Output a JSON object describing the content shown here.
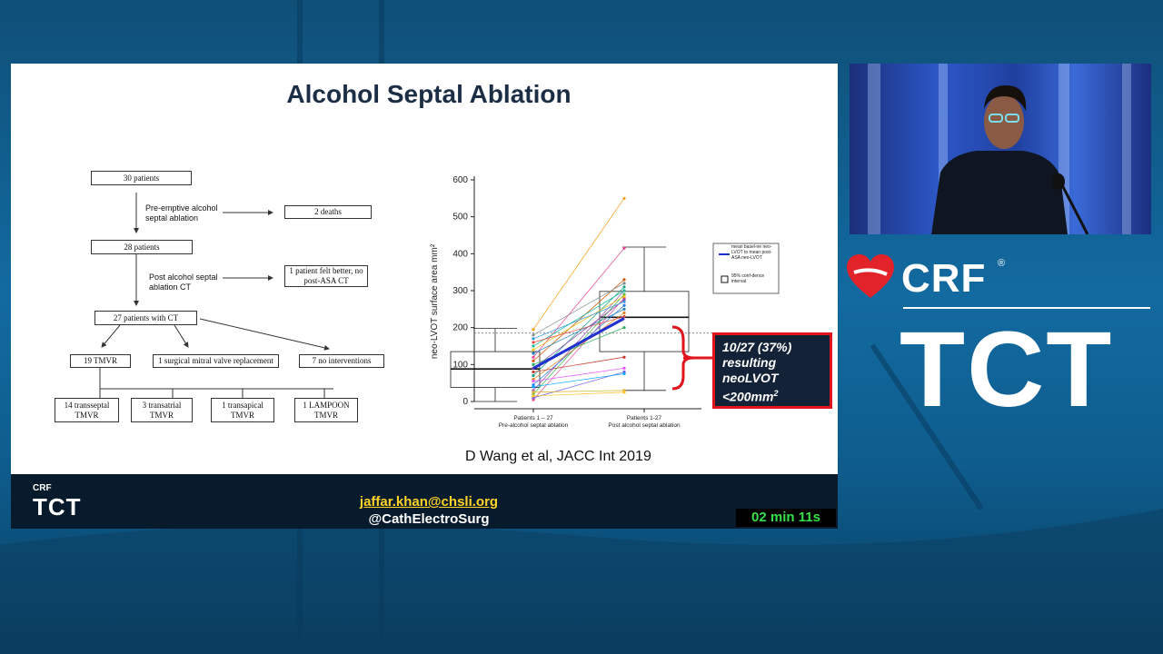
{
  "slide": {
    "title": "Alcohol Septal Ablation",
    "citation": "D Wang et al, JACC Int 2019",
    "flowchart": {
      "boxes": {
        "b30": "30 patients",
        "deaths": "2 deaths",
        "b28": "28 patients",
        "felt_better": "1 patient felt better, no post-ASA CT",
        "b27": "27 patients with CT",
        "tmvr19": "19 TMVR",
        "smvr": "1 surgical mitral valve replacement",
        "noint": "7 no interventions",
        "transseptal": "14 transseptal TMVR",
        "transatrial": "3 transatrial TMVR",
        "transapical": "1 transapical TMVR",
        "lampoon": "1 LAMPOON TMVR"
      },
      "labels": {
        "preemptive": "Pre-emptive alcohol septal ablation",
        "post_ct": "Post alcohol septal ablation CT"
      }
    },
    "chart_data": {
      "type": "line",
      "ylabel": "neo-LVOT surface area mm²",
      "ylim": [
        0,
        600
      ],
      "yticks": [
        "0",
        "100",
        "200",
        "300",
        "400",
        "500",
        "600"
      ],
      "categories": [
        "Patients 1 – 27 Pre-alcohol septal ablation",
        "Patients 1-27 Post alcohol septal ablation"
      ],
      "cat_line1": [
        "Patients 1 – 27",
        "Patients 1-27"
      ],
      "cat_line2": [
        "Pre-alcohol septal ablation",
        "Post alcohol septal ablation"
      ],
      "series": [
        {
          "values": [
            5,
            280
          ],
          "color": "#e04a8a"
        },
        {
          "values": [
            20,
            290
          ],
          "color": "#3ab54a"
        },
        {
          "values": [
            30,
            300
          ],
          "color": "#9b59b6"
        },
        {
          "values": [
            45,
            260
          ],
          "color": "#2c7be5"
        },
        {
          "values": [
            60,
            240
          ],
          "color": "#e67e22"
        },
        {
          "values": [
            70,
            310
          ],
          "color": "#16a085"
        },
        {
          "values": [
            80,
            120
          ],
          "color": "#c0392b"
        },
        {
          "values": [
            90,
            275
          ],
          "color": "#8e44ad"
        },
        {
          "values": [
            100,
            200
          ],
          "color": "#27ae60"
        },
        {
          "values": [
            110,
            330
          ],
          "color": "#d35400"
        },
        {
          "values": [
            120,
            415
          ],
          "color": "#e84393"
        },
        {
          "values": [
            130,
            250
          ],
          "color": "#2980b9"
        },
        {
          "values": [
            140,
            285
          ],
          "color": "#f1c40f"
        },
        {
          "values": [
            150,
            300
          ],
          "color": "#1abc9c"
        },
        {
          "values": [
            160,
            230
          ],
          "color": "#e74c3c"
        },
        {
          "values": [
            170,
            270
          ],
          "color": "#3498db"
        },
        {
          "values": [
            180,
            320
          ],
          "color": "#7f8c8d"
        },
        {
          "values": [
            195,
            550
          ],
          "color": "#f39c12"
        },
        {
          "values": [
            10,
            80
          ],
          "color": "#6c5ce7"
        },
        {
          "values": [
            25,
            30
          ],
          "color": "#e1b12c"
        },
        {
          "values": [
            40,
            75
          ],
          "color": "#00a8ff"
        },
        {
          "values": [
            55,
            90
          ],
          "color": "#e056fd"
        },
        {
          "values": [
            15,
            25
          ],
          "color": "#fbc531"
        }
      ],
      "mean_series": {
        "values": [
          90,
          225
        ],
        "color": "#1f2fd0"
      },
      "box_pre": {
        "q1": 38,
        "median": 88,
        "q3": 135,
        "low": 0,
        "high": 198
      },
      "box_post": {
        "q1": 135,
        "median": 228,
        "q3": 298,
        "low": 30,
        "high": 418
      },
      "threshold": 185,
      "legend": {
        "placement": "right",
        "mean_label": "mean basel-ne neo-LVOT to mean post-ASA neo-LVOT",
        "ci_label": "95% conf-dence interval"
      }
    },
    "callout": {
      "line1": "10/27 (37%)",
      "line2": "resulting",
      "line3": "neoLVOT",
      "line4": "<200mm",
      "sup": "2",
      "color": "#e2141e"
    }
  },
  "footer": {
    "logo_crf": "CRF",
    "logo_tct": "TCT",
    "email": "jaffar.khan@chsli.org",
    "handle": "@CathElectroSurg",
    "timer": "02 min 11s"
  },
  "brand": {
    "crf": "CRF",
    "reg": "®",
    "tct": "TCT",
    "heart_color": "#e2232a"
  }
}
